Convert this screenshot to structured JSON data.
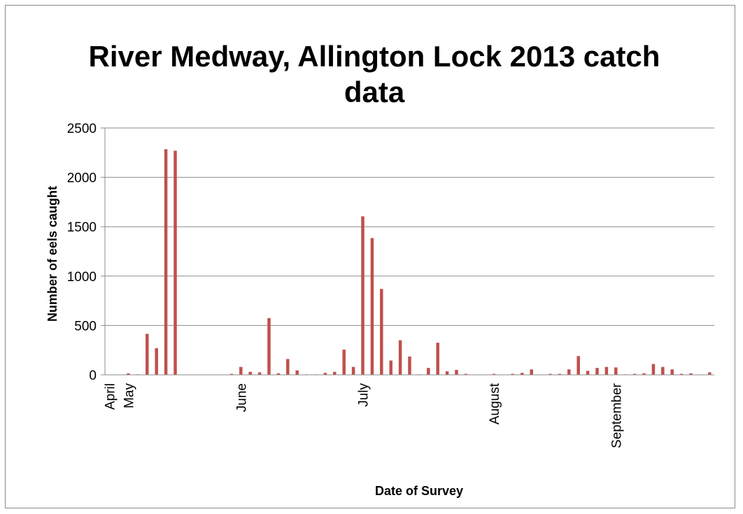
{
  "chart_data": {
    "type": "bar",
    "title": "River Medway, Allington Lock 2013 catch data",
    "xlabel": "Date of Survey",
    "ylabel": "Number of eels caught",
    "ylim": [
      0,
      2500
    ],
    "yticks": [
      0,
      500,
      1000,
      1500,
      2000,
      2500
    ],
    "grid": true,
    "legend": "none",
    "bar_color": "#c0504d",
    "x_tick_labels": [
      {
        "label": "April",
        "index": 0
      },
      {
        "label": "May",
        "index": 2
      },
      {
        "label": "June",
        "index": 14
      },
      {
        "label": "July",
        "index": 27
      },
      {
        "label": "August",
        "index": 41
      },
      {
        "label": "September",
        "index": 54
      }
    ],
    "values": [
      0,
      0,
      15,
      5,
      415,
      270,
      2285,
      2270,
      0,
      0,
      0,
      0,
      0,
      10,
      80,
      30,
      25,
      575,
      15,
      160,
      45,
      5,
      5,
      20,
      30,
      255,
      80,
      1605,
      1385,
      870,
      145,
      350,
      185,
      5,
      70,
      325,
      35,
      50,
      10,
      0,
      0,
      10,
      0,
      10,
      20,
      55,
      0,
      10,
      10,
      55,
      190,
      40,
      70,
      80,
      75,
      5,
      10,
      15,
      110,
      80,
      55,
      10,
      15,
      0,
      25
    ]
  }
}
